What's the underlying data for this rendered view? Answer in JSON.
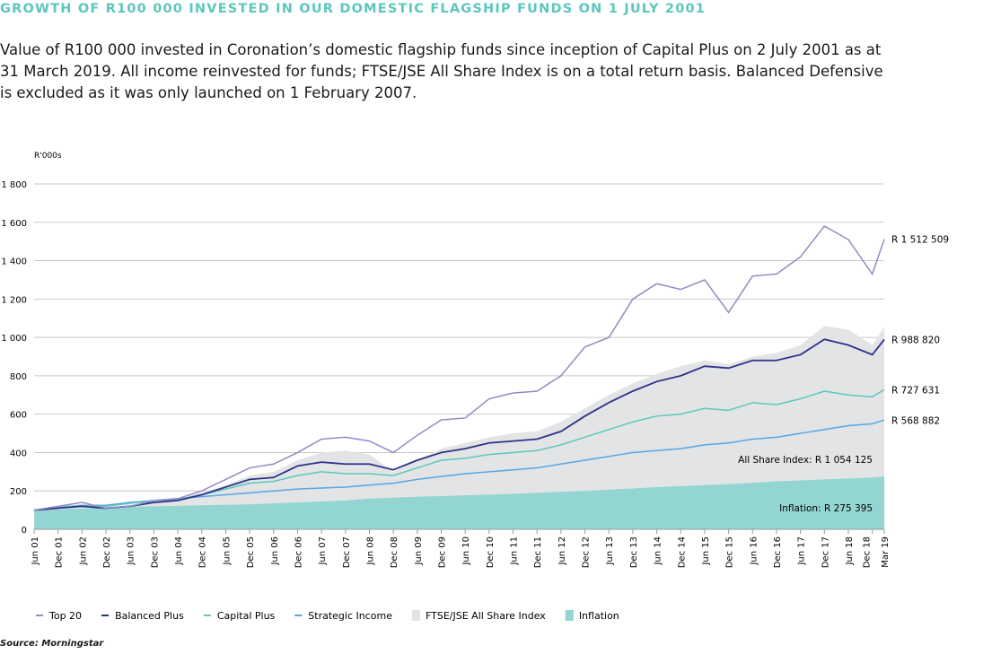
{
  "title": "GROWTH OF R100 000 INVESTED IN OUR DOMESTIC FLAGSHIP FUNDS ON 1 JULY 2001",
  "description": "Value of R100 000 invested in Coronation’s domestic flagship funds since inception of Capital Plus on 2 July 2001 as at 31 March 2019. All income reinvested for funds; FTSE/JSE All Share Index is on a total return basis. Balanced Defensive is excluded as it was only launched on 1 February 2007.",
  "source": "Source: Morningstar",
  "chart_data": {
    "type": "line",
    "ylabel": "R'000s",
    "ylim": [
      0,
      1800
    ],
    "yticks": [
      "0",
      "200",
      "400",
      "600",
      "800",
      "1 000",
      "1 200",
      "1 400",
      "1 600",
      "1 800"
    ],
    "grid": true,
    "legend_placement": "bottom",
    "categories": [
      "Jun 01",
      "Dec 01",
      "Jun 02",
      "Dec 02",
      "Jun 03",
      "Dec 03",
      "Jun 04",
      "Dec 04",
      "Jun 05",
      "Dec 05",
      "Jun 06",
      "Dec 06",
      "Jun 07",
      "Dec 07",
      "Jun 08",
      "Dec 08",
      "Jun 09",
      "Dec 09",
      "Jun 10",
      "Dec 10",
      "Jun 11",
      "Dec 11",
      "Jun 12",
      "Dec 12",
      "Jun 13",
      "Dec 13",
      "Jun 14",
      "Dec 14",
      "Jun 15",
      "Dec 15",
      "Jun 16",
      "Dec 16",
      "Jun 17",
      "Dec 17",
      "Jun 18",
      "Dec 18",
      "Mar 19"
    ],
    "series": [
      {
        "name": "Inflation",
        "kind": "area",
        "color": "#92d5d1",
        "end_label": "Inflation: R 275 395",
        "values": [
          100,
          103,
          108,
          115,
          118,
          120,
          122,
          125,
          128,
          130,
          135,
          140,
          145,
          150,
          160,
          165,
          170,
          173,
          177,
          180,
          185,
          190,
          195,
          200,
          207,
          213,
          220,
          225,
          230,
          235,
          242,
          250,
          255,
          260,
          265,
          270,
          275
        ]
      },
      {
        "name": "FTSE/JSE All Share Index",
        "kind": "area",
        "color": "#e3e4e6",
        "end_label": "All Share Index: R 1 054 125",
        "values": [
          100,
          105,
          115,
          100,
          110,
          140,
          160,
          190,
          230,
          280,
          300,
          360,
          400,
          410,
          390,
          300,
          360,
          420,
          450,
          480,
          500,
          510,
          560,
          630,
          700,
          760,
          810,
          850,
          880,
          860,
          900,
          920,
          960,
          1060,
          1040,
          960,
          1054
        ]
      },
      {
        "name": "Strategic Income",
        "kind": "line",
        "color": "#5aa6e0",
        "end_label": "R 568 882",
        "values": [
          100,
          115,
          125,
          125,
          140,
          150,
          160,
          170,
          180,
          190,
          200,
          210,
          215,
          220,
          230,
          240,
          260,
          275,
          290,
          300,
          310,
          320,
          340,
          360,
          380,
          400,
          410,
          420,
          440,
          450,
          470,
          480,
          500,
          520,
          540,
          550,
          569
        ]
      },
      {
        "name": "Capital Plus",
        "kind": "line",
        "color": "#5cc7bd",
        "end_label": "R 727 631",
        "values": [
          100,
          115,
          125,
          120,
          135,
          150,
          155,
          180,
          210,
          240,
          250,
          280,
          300,
          290,
          290,
          280,
          320,
          360,
          370,
          390,
          400,
          410,
          440,
          480,
          520,
          560,
          590,
          600,
          630,
          620,
          660,
          650,
          680,
          720,
          700,
          690,
          728
        ]
      },
      {
        "name": "Balanced Plus",
        "kind": "line",
        "color": "#2c3387",
        "end_label": "R 988 820",
        "values": [
          100,
          110,
          120,
          110,
          120,
          140,
          150,
          180,
          220,
          260,
          270,
          330,
          350,
          340,
          340,
          310,
          360,
          400,
          420,
          450,
          460,
          470,
          510,
          590,
          660,
          720,
          770,
          800,
          850,
          840,
          880,
          880,
          910,
          990,
          960,
          910,
          989
        ]
      },
      {
        "name": "Top 20",
        "kind": "line",
        "color": "#958ac4",
        "end_label": "R 1 512 509",
        "values": [
          100,
          120,
          140,
          110,
          120,
          150,
          160,
          200,
          260,
          320,
          340,
          400,
          470,
          480,
          460,
          400,
          490,
          570,
          580,
          680,
          710,
          720,
          800,
          950,
          1000,
          1200,
          1280,
          1250,
          1300,
          1130,
          1320,
          1330,
          1420,
          1580,
          1510,
          1330,
          1512
        ]
      }
    ],
    "legend": [
      "Top 20",
      "Balanced Plus",
      "Capital Plus",
      "Strategic Income",
      "FTSE/JSE All Share Index",
      "Inflation"
    ]
  }
}
